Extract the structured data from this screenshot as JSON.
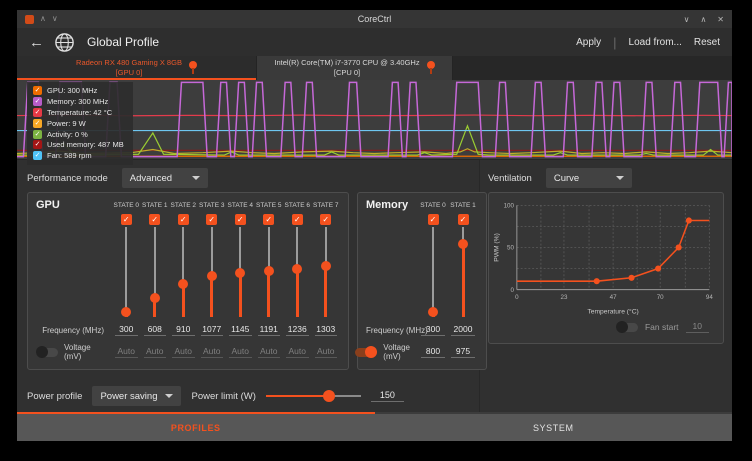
{
  "accent": "#f4511e",
  "titlebar": {
    "title": "CoreCtrl",
    "minimize": "∨",
    "maximize": "∧",
    "close": "✕"
  },
  "toolbar": {
    "back": "←",
    "page_title": "Global Profile",
    "apply": "Apply",
    "load_from": "Load from...",
    "reset": "Reset"
  },
  "device_tabs": [
    {
      "name": "Radeon RX 480 Gaming X 8GB",
      "sub": "[GPU 0]",
      "selected": true
    },
    {
      "name": "Intel(R) Core(TM) i7-3770 CPU @ 3.40GHz",
      "sub": "[CPU 0]",
      "selected": false
    }
  ],
  "monitor_legend": [
    {
      "label": "GPU: 300 MHz",
      "color": "#ef6c00"
    },
    {
      "label": "Memory: 300 MHz",
      "color": "#b85cc8"
    },
    {
      "label": "Temperature: 42 °C",
      "color": "#e53945"
    },
    {
      "label": "Power: 9 W",
      "color": "#f9a825"
    },
    {
      "label": "Activity: 0 %",
      "color": "#7cb342"
    },
    {
      "label": "Used memory: 487 MB",
      "color": "#a31515"
    },
    {
      "label": "Fan: 589 rpm",
      "color": "#4fc3f7"
    }
  ],
  "performance": {
    "label": "Performance mode",
    "value": "Advanced"
  },
  "gpu_box": {
    "title": "GPU",
    "freq_label": "Frequency (MHz)",
    "volt_label": "Voltage (mV)",
    "volt_enabled": false,
    "states": [
      {
        "label": "STATE 0",
        "freq": "300",
        "volt": "Auto"
      },
      {
        "label": "STATE 1",
        "freq": "608",
        "volt": "Auto"
      },
      {
        "label": "STATE 2",
        "freq": "910",
        "volt": "Auto"
      },
      {
        "label": "STATE 3",
        "freq": "1077",
        "volt": "Auto"
      },
      {
        "label": "STATE 4",
        "freq": "1145",
        "volt": "Auto"
      },
      {
        "label": "STATE 5",
        "freq": "1191",
        "volt": "Auto"
      },
      {
        "label": "STATE 6",
        "freq": "1236",
        "volt": "Auto"
      },
      {
        "label": "STATE 7",
        "freq": "1303",
        "volt": "Auto"
      }
    ]
  },
  "memory_box": {
    "title": "Memory",
    "freq_label": "Frequency (MHz)",
    "volt_label": "Voltage (mV)",
    "volt_enabled": true,
    "states": [
      {
        "label": "STATE 0",
        "freq": "300",
        "volt": "800"
      },
      {
        "label": "STATE 1",
        "freq": "2000",
        "volt": "975"
      }
    ]
  },
  "ventilation": {
    "label": "Ventilation",
    "mode": "Curve",
    "fan_start_label": "Fan start",
    "fan_start_value": "10",
    "fan_start_enabled": false
  },
  "power_row": {
    "profile_label": "Power profile",
    "profile_value": "Power saving",
    "limit_label": "Power limit (W)",
    "limit_value": "150",
    "limit_fraction": 0.66
  },
  "bottom_tabs": [
    {
      "label": "PROFILES",
      "selected": true
    },
    {
      "label": "SYSTEM",
      "selected": false
    }
  ],
  "chart_data": [
    {
      "id": "fan_curve",
      "type": "line",
      "xlabel": "Temperature (°C)",
      "ylabel": "PWM (%)",
      "xlim": [
        0,
        94
      ],
      "ylim": [
        0,
        100
      ],
      "xticks": [
        0,
        23,
        47,
        70,
        94
      ],
      "yticks": [
        0,
        50,
        100
      ],
      "grid": true,
      "line_color": "#f4511e",
      "points": [
        [
          0,
          10
        ],
        [
          39,
          10
        ],
        [
          56,
          14
        ],
        [
          69,
          25
        ],
        [
          79,
          50
        ],
        [
          84,
          82
        ],
        [
          94,
          82
        ]
      ],
      "markers": [
        [
          39,
          10
        ],
        [
          56,
          14
        ],
        [
          69,
          25
        ],
        [
          79,
          50
        ],
        [
          84,
          82
        ]
      ]
    },
    {
      "id": "monitor",
      "type": "line",
      "xlim": [
        0,
        100
      ],
      "ylim": [
        0,
        100
      ],
      "grid": false,
      "series": [
        {
          "name": "GPU (300 MHz)",
          "color": "#ef6c00",
          "points": [
            [
              0,
              3.5
            ],
            [
              100,
              3.5
            ]
          ]
        },
        {
          "name": "Used memory (487 MB)",
          "color": "#8b1a1a",
          "points": [
            [
              0,
              11
            ],
            [
              100,
              11
            ]
          ]
        },
        {
          "name": "Power (9 W)",
          "color": "#bfae2a",
          "points": [
            [
              0,
              7
            ],
            [
              3,
              8
            ],
            [
              6,
              10
            ],
            [
              9,
              7
            ],
            [
              13,
              7.5
            ],
            [
              16,
              8
            ],
            [
              19,
              12
            ],
            [
              22,
              7
            ],
            [
              26,
              8
            ],
            [
              30,
              10
            ],
            [
              33,
              8
            ],
            [
              36,
              7
            ],
            [
              40,
              9
            ],
            [
              44,
              10
            ],
            [
              47,
              8
            ],
            [
              50,
              7
            ],
            [
              53,
              8
            ],
            [
              57,
              9
            ],
            [
              60,
              7
            ],
            [
              62,
              9
            ],
            [
              63,
              13
            ],
            [
              64,
              9
            ],
            [
              66,
              8
            ],
            [
              69,
              7
            ],
            [
              72,
              8
            ],
            [
              76,
              10
            ],
            [
              79,
              7
            ],
            [
              82,
              8
            ],
            [
              85,
              7
            ],
            [
              88,
              9
            ],
            [
              91,
              7
            ],
            [
              94,
              8
            ],
            [
              97,
              10
            ],
            [
              100,
              8
            ]
          ]
        },
        {
          "name": "Activity (0 %)",
          "color": "#9acd32",
          "points": [
            [
              0,
              5
            ],
            [
              5,
              5
            ],
            [
              6.5,
              20
            ],
            [
              8,
              5
            ],
            [
              17,
              6
            ],
            [
              19,
              33
            ],
            [
              20.5,
              6
            ],
            [
              29,
              5
            ],
            [
              30,
              9
            ],
            [
              31,
              5
            ],
            [
              43,
              5
            ],
            [
              44,
              9
            ],
            [
              45,
              5
            ],
            [
              56,
              5
            ],
            [
              57,
              8
            ],
            [
              58,
              5
            ],
            [
              61.5,
              6
            ],
            [
              63,
              42
            ],
            [
              64.5,
              6
            ],
            [
              66,
              5
            ],
            [
              75,
              5
            ],
            [
              76,
              8
            ],
            [
              77,
              5
            ],
            [
              87,
              5
            ],
            [
              88,
              7
            ],
            [
              89,
              5
            ],
            [
              96,
              5
            ],
            [
              97,
              12
            ],
            [
              98,
              5
            ],
            [
              100,
              5
            ]
          ]
        },
        {
          "name": "Fan (589 rpm)",
          "color": "#6ec6f0",
          "points": [
            [
              0,
              36
            ],
            [
              100,
              36
            ]
          ]
        },
        {
          "name": "Temperature (42 °C)",
          "color": "#e33b4c",
          "points": [
            [
              0,
              55
            ],
            [
              8,
              55.6
            ],
            [
              16,
              54.7
            ],
            [
              24,
              55.2
            ],
            [
              32,
              54.9
            ],
            [
              40,
              55.5
            ],
            [
              48,
              54.8
            ],
            [
              56,
              55.1
            ],
            [
              64,
              55.6
            ],
            [
              72,
              54.8
            ],
            [
              80,
              55.2
            ],
            [
              88,
              54.7
            ],
            [
              96,
              55.3
            ],
            [
              100,
              55
            ]
          ]
        },
        {
          "name": "Memory (MHz)",
          "color": "#c668d8",
          "baseline": 3,
          "peak": 97,
          "spikes": [
            [
              1.5,
              3
            ],
            [
              6,
              9
            ],
            [
              13,
              14
            ],
            [
              23,
              26
            ],
            [
              28.5,
              29.3
            ],
            [
              31,
              31.8
            ],
            [
              33.5,
              34.3
            ],
            [
              37.5,
              38.3
            ],
            [
              40.5,
              41.3
            ],
            [
              46.5,
              47.5
            ],
            [
              52.5,
              53.3
            ],
            [
              55,
              55.8
            ],
            [
              61.5,
              64.5
            ],
            [
              67.5,
              68.3
            ],
            [
              72.5,
              73.3
            ],
            [
              77,
              77.8
            ],
            [
              81,
              81.8
            ],
            [
              83.5,
              84.3
            ],
            [
              88,
              88.8
            ],
            [
              92,
              92.8
            ],
            [
              95.5,
              98
            ],
            [
              99.5,
              101
            ]
          ]
        }
      ]
    }
  ]
}
